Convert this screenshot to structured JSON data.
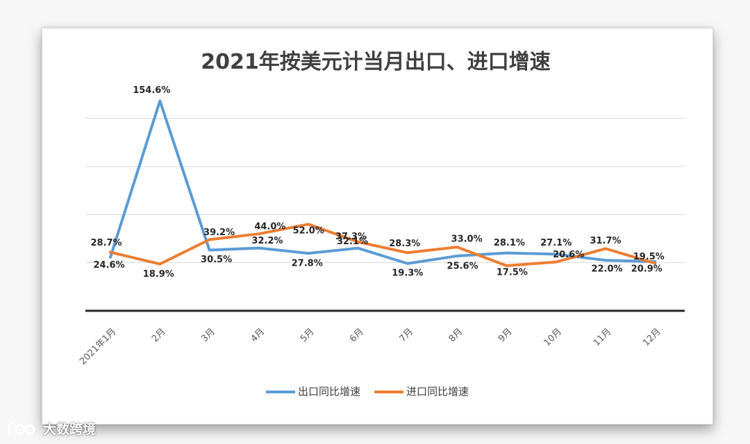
{
  "chart_data": {
    "type": "line",
    "title": "2021年按美元计当月出口、进口增速",
    "categories": [
      "2021年1月",
      "2月",
      "3月",
      "4月",
      "5月",
      "6月",
      "7月",
      "8月",
      "9月",
      "10月",
      "11月",
      "12月"
    ],
    "series": [
      {
        "name": "出口同比增速",
        "color": "#5b9bd5",
        "values": [
          24.6,
          154.6,
          30.5,
          32.2,
          27.8,
          32.1,
          19.3,
          25.6,
          28.1,
          27.1,
          22.0,
          20.9
        ],
        "labels": [
          "24.6%",
          "154.6%",
          "30.5%",
          "32.2%",
          "27.8%",
          "32.1%",
          "19.3%",
          "25.6%",
          "28.1%",
          "27.1%",
          "22.0%",
          "20.9%"
        ]
      },
      {
        "name": "进口同比增速",
        "color": "#ed7d31",
        "values": [
          28.7,
          18.9,
          39.2,
          44.0,
          52.0,
          37.3,
          28.3,
          33.0,
          17.5,
          20.6,
          31.7,
          19.5
        ],
        "labels": [
          "28.7%",
          "18.9%",
          "39.2%",
          "44.0%",
          "52.0%",
          "37.3%",
          "28.3%",
          "33.0%",
          "17.5%",
          "20.6%",
          "31.7%",
          "19.5%"
        ]
      }
    ],
    "ylim": [
      -20,
      160
    ],
    "grid": true,
    "legend_position": "bottom"
  },
  "watermark": {
    "text": "大数跨境",
    "icon": "logo-icon"
  }
}
